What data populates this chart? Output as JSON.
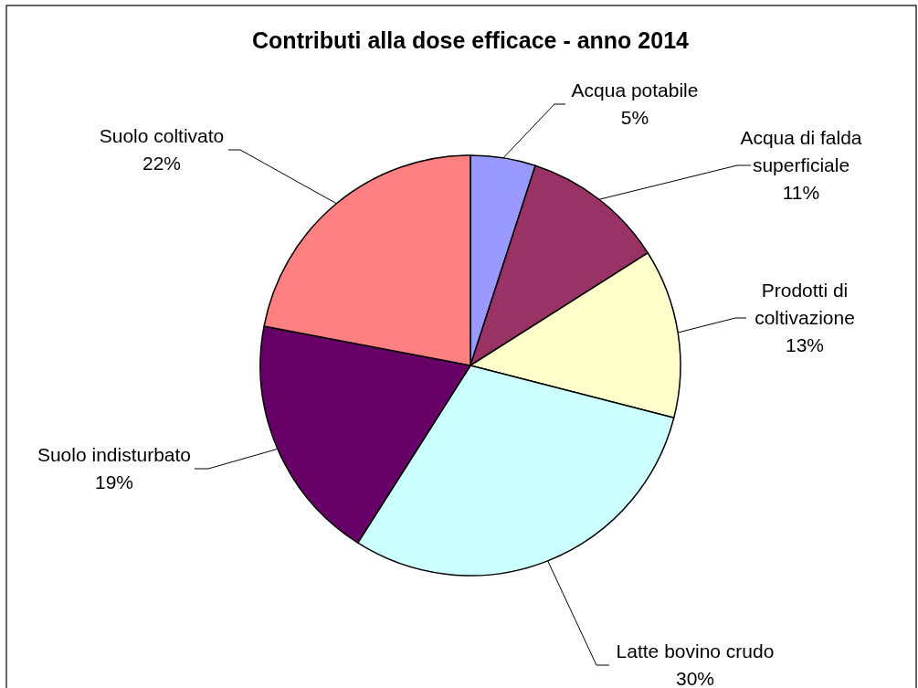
{
  "chart_data": {
    "type": "pie",
    "title": "Contributi alla dose efficace - anno 2014",
    "categories": [
      "Acqua potabile",
      "Acqua di falda superficiale",
      "Prodotti di coltivazione",
      "Latte bovino crudo",
      "Suolo indisturbato",
      "Suolo coltivato"
    ],
    "values": [
      5,
      11,
      13,
      30,
      19,
      22
    ],
    "value_labels": [
      "5%",
      "11%",
      "13%",
      "30%",
      "19%",
      "22%"
    ],
    "colors": [
      "#9999ff",
      "#993366",
      "#ffffcc",
      "#ccffff",
      "#660066",
      "#ff8080"
    ]
  }
}
